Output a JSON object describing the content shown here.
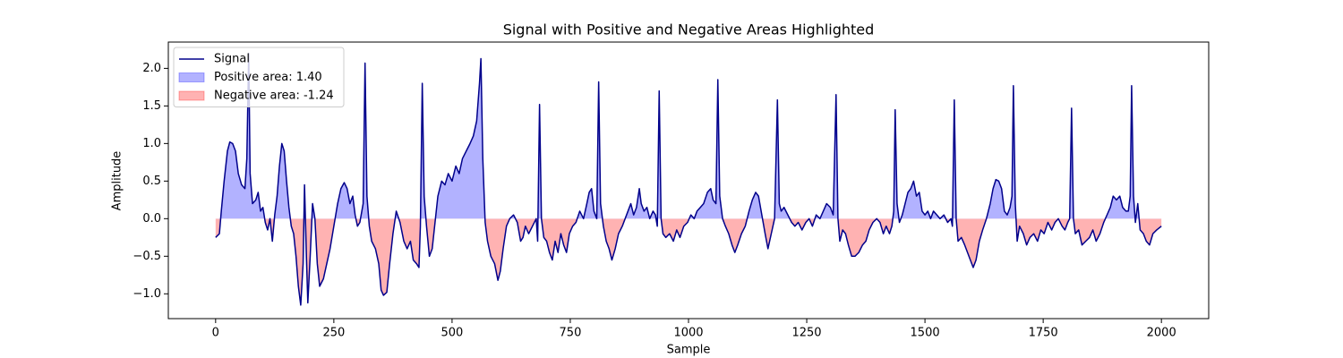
{
  "chart_data": {
    "type": "line",
    "title": "Signal with Positive and Negative Areas Highlighted",
    "x_label": "Sample",
    "y_label": "Amplitude",
    "xlim": [
      -100,
      2100
    ],
    "ylim": [
      -1.33,
      2.35
    ],
    "xticks": [
      0,
      250,
      500,
      750,
      1000,
      1250,
      1500,
      1750,
      2000
    ],
    "yticks": [
      {
        "value": -1,
        "label": "−1.0"
      },
      {
        "value": -0.5,
        "label": "−0.5"
      },
      {
        "value": 0,
        "label": "0.0"
      },
      {
        "value": 0.5,
        "label": "0.5"
      },
      {
        "value": 1,
        "label": "1.0"
      },
      {
        "value": 1.5,
        "label": "1.5"
      },
      {
        "value": 2,
        "label": "2.0"
      }
    ],
    "grid": false,
    "legend": "upper left",
    "x": [
      0,
      8,
      12,
      18,
      25,
      30,
      36,
      42,
      48,
      55,
      62,
      66,
      70,
      73,
      78,
      85,
      90,
      95,
      100,
      105,
      110,
      115,
      120,
      125,
      130,
      135,
      140,
      145,
      150,
      155,
      160,
      165,
      170,
      175,
      180,
      185,
      188,
      192,
      195,
      200,
      205,
      210,
      215,
      220,
      228,
      235,
      242,
      250,
      258,
      265,
      272,
      278,
      284,
      290,
      295,
      300,
      305,
      312,
      316,
      320,
      325,
      330,
      338,
      345,
      350,
      355,
      362,
      368,
      375,
      382,
      390,
      398,
      405,
      412,
      418,
      425,
      430,
      433,
      437,
      441,
      446,
      452,
      458,
      464,
      470,
      478,
      485,
      492,
      500,
      508,
      515,
      522,
      530,
      538,
      545,
      552,
      558,
      561,
      565,
      570,
      575,
      582,
      590,
      597,
      602,
      608,
      615,
      622,
      630,
      638,
      645,
      650,
      655,
      662,
      670,
      678,
      681,
      685,
      689,
      694,
      700,
      706,
      712,
      718,
      724,
      730,
      736,
      742,
      748,
      755,
      762,
      770,
      778,
      785,
      790,
      795,
      800,
      806,
      810,
      814,
      820,
      826,
      832,
      838,
      845,
      852,
      860,
      866,
      872,
      878,
      884,
      890,
      896,
      900,
      906,
      912,
      918,
      925,
      930,
      934,
      938,
      942,
      946,
      952,
      960,
      968,
      975,
      982,
      990,
      998,
      1005,
      1012,
      1018,
      1025,
      1032,
      1040,
      1047,
      1052,
      1058,
      1062,
      1066,
      1072,
      1078,
      1085,
      1092,
      1098,
      1104,
      1112,
      1120,
      1128,
      1135,
      1142,
      1148,
      1155,
      1162,
      1168,
      1175,
      1182,
      1188,
      1192,
      1196,
      1202,
      1210,
      1218,
      1225,
      1232,
      1240,
      1248,
      1255,
      1262,
      1270,
      1278,
      1285,
      1292,
      1300,
      1306,
      1312,
      1316,
      1320,
      1326,
      1332,
      1338,
      1345,
      1352,
      1360,
      1368,
      1375,
      1382,
      1390,
      1398,
      1405,
      1412,
      1418,
      1425,
      1430,
      1434,
      1437,
      1441,
      1446,
      1452,
      1458,
      1464,
      1470,
      1476,
      1482,
      1488,
      1494,
      1500,
      1506,
      1512,
      1518,
      1525,
      1532,
      1540,
      1548,
      1555,
      1558,
      1562,
      1566,
      1570,
      1577,
      1584,
      1590,
      1596,
      1602,
      1608,
      1615,
      1622,
      1630,
      1638,
      1644,
      1650,
      1656,
      1662,
      1668,
      1674,
      1680,
      1684,
      1687,
      1691,
      1695,
      1700,
      1708,
      1715,
      1722,
      1730,
      1738,
      1745,
      1752,
      1760,
      1768,
      1775,
      1782,
      1790,
      1796,
      1802,
      1806,
      1810,
      1814,
      1818,
      1825,
      1832,
      1840,
      1848,
      1855,
      1862,
      1870,
      1878,
      1885,
      1892,
      1898,
      1905,
      1912,
      1918,
      1925,
      1930,
      1934,
      1937,
      1941,
      1945,
      1950,
      1955,
      1962,
      1968,
      1975,
      1982,
      1990,
      2000
    ],
    "series": [
      {
        "name": "Signal",
        "color": "#00008b",
        "values": [
          -0.25,
          -0.2,
          0.1,
          0.5,
          0.9,
          1.02,
          1.0,
          0.9,
          0.6,
          0.45,
          0.4,
          0.8,
          2.2,
          0.6,
          0.2,
          0.25,
          0.35,
          0.1,
          0.15,
          -0.05,
          -0.15,
          0.0,
          -0.3,
          0.05,
          0.3,
          0.7,
          1.0,
          0.9,
          0.5,
          0.15,
          -0.1,
          -0.2,
          -0.5,
          -0.9,
          -1.15,
          -0.6,
          0.45,
          -0.5,
          -1.12,
          -0.5,
          0.2,
          0.0,
          -0.6,
          -0.9,
          -0.8,
          -0.6,
          -0.4,
          -0.1,
          0.2,
          0.4,
          0.48,
          0.4,
          0.2,
          0.3,
          0.05,
          -0.1,
          -0.05,
          0.2,
          2.07,
          0.3,
          -0.1,
          -0.3,
          -0.4,
          -0.6,
          -0.95,
          -1.02,
          -0.98,
          -0.6,
          -0.2,
          0.1,
          -0.05,
          -0.3,
          -0.4,
          -0.3,
          -0.55,
          -0.6,
          -0.65,
          -0.1,
          1.8,
          0.3,
          -0.1,
          -0.5,
          -0.4,
          -0.05,
          0.3,
          0.5,
          0.45,
          0.6,
          0.5,
          0.7,
          0.6,
          0.8,
          0.9,
          1.0,
          1.1,
          1.3,
          1.8,
          2.13,
          0.8,
          -0.05,
          -0.3,
          -0.5,
          -0.6,
          -0.82,
          -0.7,
          -0.4,
          -0.1,
          0.0,
          0.05,
          -0.05,
          -0.3,
          -0.25,
          -0.1,
          -0.2,
          -0.1,
          0.0,
          -0.3,
          1.52,
          0.0,
          -0.25,
          -0.3,
          -0.45,
          -0.55,
          -0.3,
          -0.45,
          -0.2,
          -0.35,
          -0.45,
          -0.2,
          -0.1,
          -0.05,
          0.1,
          0.0,
          0.2,
          0.35,
          0.4,
          0.1,
          0.0,
          1.82,
          0.2,
          -0.1,
          -0.3,
          -0.4,
          -0.55,
          -0.4,
          -0.2,
          -0.1,
          0.0,
          0.1,
          0.2,
          0.05,
          0.15,
          0.4,
          0.2,
          0.1,
          0.15,
          0.0,
          0.1,
          0.05,
          -0.1,
          1.7,
          0.0,
          -0.2,
          -0.25,
          -0.2,
          -0.3,
          -0.15,
          -0.25,
          -0.1,
          -0.05,
          0.05,
          0.0,
          0.1,
          0.15,
          0.2,
          0.35,
          0.4,
          0.25,
          0.2,
          1.85,
          0.3,
          0.0,
          -0.1,
          -0.2,
          -0.35,
          -0.45,
          -0.35,
          -0.2,
          -0.1,
          0.1,
          0.25,
          0.35,
          0.3,
          0.05,
          -0.2,
          -0.4,
          -0.2,
          0.0,
          1.58,
          0.2,
          0.1,
          0.15,
          0.05,
          -0.05,
          -0.1,
          -0.05,
          -0.15,
          -0.05,
          0.0,
          -0.1,
          0.05,
          0.0,
          0.1,
          0.2,
          0.15,
          0.05,
          1.65,
          0.0,
          -0.3,
          -0.15,
          -0.2,
          -0.35,
          -0.5,
          -0.5,
          -0.45,
          -0.35,
          -0.3,
          -0.15,
          -0.05,
          0.0,
          -0.05,
          -0.2,
          -0.1,
          -0.2,
          -0.1,
          0.1,
          1.45,
          0.2,
          -0.05,
          0.05,
          0.2,
          0.35,
          0.4,
          0.5,
          0.3,
          0.35,
          0.1,
          0.05,
          0.1,
          0.0,
          0.1,
          0.05,
          0.0,
          0.05,
          -0.05,
          0.0,
          -0.1,
          1.58,
          0.0,
          -0.3,
          -0.25,
          -0.35,
          -0.45,
          -0.55,
          -0.65,
          -0.55,
          -0.3,
          -0.15,
          0.0,
          0.2,
          0.4,
          0.52,
          0.5,
          0.4,
          0.1,
          0.05,
          0.15,
          0.3,
          1.77,
          0.2,
          -0.3,
          -0.1,
          -0.2,
          -0.35,
          -0.25,
          -0.2,
          -0.3,
          -0.15,
          -0.2,
          -0.05,
          -0.15,
          -0.05,
          0.0,
          -0.1,
          -0.15,
          -0.05,
          0.0,
          1.47,
          0.0,
          -0.2,
          -0.15,
          -0.35,
          -0.3,
          -0.25,
          -0.15,
          -0.3,
          -0.2,
          -0.05,
          0.05,
          0.15,
          0.3,
          0.25,
          0.3,
          0.15,
          0.1,
          0.1,
          0.3,
          1.77,
          0.3,
          -0.05,
          0.2,
          -0.15,
          -0.2,
          -0.3,
          -0.35,
          -0.2,
          -0.15,
          -0.1
        ]
      }
    ],
    "fills": [
      {
        "name": "Positive area: 1.40",
        "color": "#0000ff",
        "side": "positive"
      },
      {
        "name": "Negative area: -1.24",
        "color": "#ff0000",
        "side": "negative"
      }
    ]
  }
}
